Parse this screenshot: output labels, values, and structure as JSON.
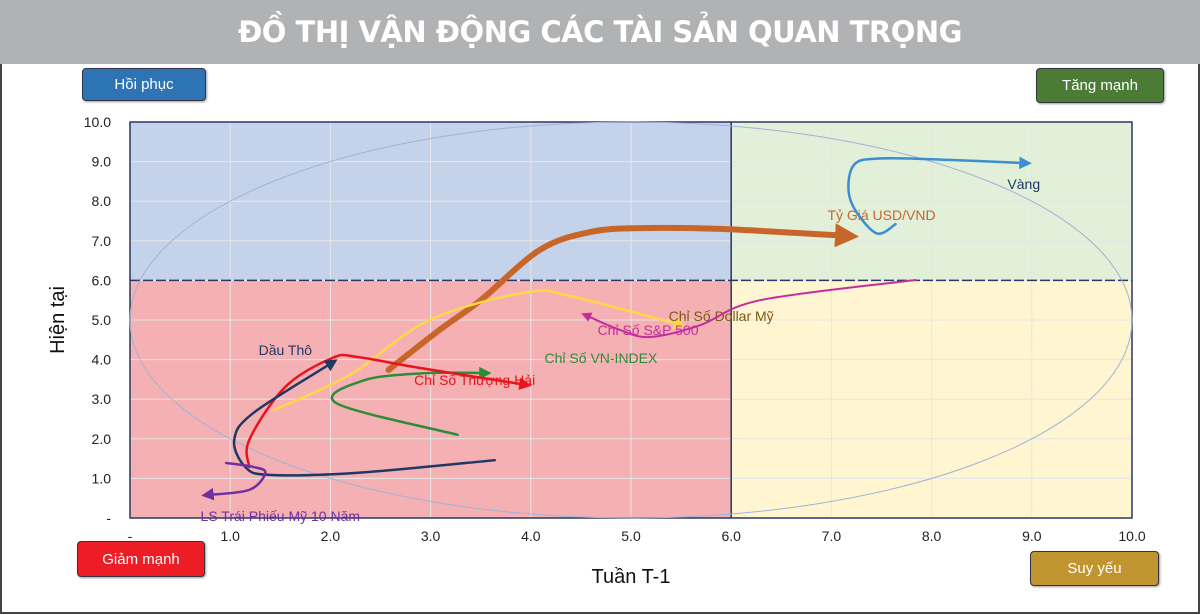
{
  "title": "ĐỒ THỊ VẬN ĐỘNG CÁC TÀI SẢN QUAN TRỌNG",
  "quadrants": {
    "top_left": {
      "label": "Hồi phục",
      "color": "#2e74b5",
      "fill": "#c5d3ea"
    },
    "top_right": {
      "label": "Tăng mạnh",
      "color": "#4a7c35",
      "fill": "#e2efd9"
    },
    "bottom_left": {
      "label": "Giảm mạnh",
      "color": "#ee1c25",
      "fill": "#f4b0b3"
    },
    "bottom_right": {
      "label": "Suy yếu",
      "color": "#c0942e",
      "fill": "#fff5d1"
    }
  },
  "chart_data": {
    "type": "line",
    "title": "ĐỒ THỊ VẬN ĐỘNG CÁC TÀI SẢN QUAN TRỌNG",
    "xlabel": "Tuần T-1",
    "ylabel": "Hiện tại",
    "xlim": [
      0,
      10
    ],
    "ylim": [
      0,
      10
    ],
    "xticks": [
      "-",
      "1.0",
      "2.0",
      "3.0",
      "4.0",
      "5.0",
      "6.0",
      "7.0",
      "8.0",
      "9.0",
      "10.0"
    ],
    "yticks": [
      "-",
      "1.0",
      "2.0",
      "3.0",
      "4.0",
      "5.0",
      "6.0",
      "7.0",
      "8.0",
      "9.0",
      "10.0"
    ],
    "grid": true,
    "quadrant_split": {
      "x": 6,
      "y": 6
    },
    "ellipse": {
      "cx": 5,
      "cy": 5,
      "rx": 5,
      "ry": 5
    },
    "series": [
      {
        "name": "Tỷ Giá USD/VND",
        "color": "#c8662a",
        "width": 6,
        "label_at": [
          7.5,
          7.65
        ],
        "points": [
          [
            2.58,
            3.74
          ],
          [
            3.09,
            4.75
          ],
          [
            3.5,
            5.5
          ],
          [
            4.09,
            6.77
          ],
          [
            4.59,
            7.22
          ],
          [
            5.09,
            7.32
          ],
          [
            5.89,
            7.3
          ],
          [
            7.18,
            7.12
          ]
        ]
      },
      {
        "name": "Vàng",
        "color": "#3b8fd0",
        "width": 2.5,
        "label_at": [
          8.92,
          8.43
        ],
        "label_color": "#1f3864",
        "points": [
          [
            7.64,
            7.42
          ],
          [
            7.44,
            7.2
          ],
          [
            7.19,
            8.03
          ],
          [
            7.22,
            8.9
          ],
          [
            7.5,
            9.08
          ],
          [
            8.2,
            9.04
          ],
          [
            8.95,
            8.96
          ]
        ]
      },
      {
        "name": "Chỉ Số Dollar Mỹ",
        "color": "#ffd84a",
        "width": 2.5,
        "label_at": [
          5.9,
          5.1
        ],
        "label_color": "#7b5a14",
        "points": [
          [
            1.44,
            2.73
          ],
          [
            2.19,
            3.61
          ],
          [
            2.99,
            5.0
          ],
          [
            3.96,
            5.7
          ],
          [
            4.4,
            5.6
          ],
          [
            5.5,
            4.87
          ]
        ]
      },
      {
        "name": "Chỉ Số S&P 500",
        "color": "#c42e9c",
        "width": 2,
        "label_at": [
          5.17,
          4.75
        ],
        "points": [
          [
            7.84,
            6.01
          ],
          [
            6.29,
            5.5
          ],
          [
            5.69,
            4.87
          ],
          [
            5.19,
            4.57
          ],
          [
            4.89,
            4.75
          ],
          [
            4.54,
            5.13
          ]
        ]
      },
      {
        "name": "Chỉ Số VN-INDEX",
        "color": "#2e8b3a",
        "width": 2.5,
        "label_at": [
          4.7,
          4.04
        ],
        "points": [
          [
            3.27,
            2.1
          ],
          [
            2.06,
            2.9
          ],
          [
            2.34,
            3.48
          ],
          [
            2.97,
            3.66
          ],
          [
            3.56,
            3.66
          ]
        ]
      },
      {
        "name": "Chỉ Số Thượng Hải",
        "color": "#e8141c",
        "width": 2.5,
        "label_at": [
          3.44,
          3.48
        ],
        "points": [
          [
            1.19,
            1.29
          ],
          [
            1.19,
            1.97
          ],
          [
            1.55,
            3.31
          ],
          [
            2.02,
            4.04
          ],
          [
            2.26,
            4.07
          ],
          [
            2.89,
            3.79
          ],
          [
            3.96,
            3.36
          ]
        ]
      },
      {
        "name": "Dầu Thô",
        "color": "#1f3864",
        "width": 2.5,
        "label_at": [
          1.55,
          4.24
        ],
        "points": [
          [
            3.64,
            1.46
          ],
          [
            2.26,
            1.14
          ],
          [
            1.39,
            1.09
          ],
          [
            1.15,
            1.29
          ],
          [
            1.04,
            1.97
          ],
          [
            1.23,
            2.65
          ],
          [
            2.03,
            3.94
          ]
        ]
      },
      {
        "name": "LS Trái Phiếu Mỹ 10 Năm",
        "color": "#7030a0",
        "width": 2.5,
        "label_at": [
          1.5,
          0.05
        ],
        "points": [
          [
            0.96,
            1.39
          ],
          [
            1.23,
            1.29
          ],
          [
            1.35,
            1.14
          ],
          [
            1.19,
            0.71
          ],
          [
            0.76,
            0.58
          ]
        ]
      }
    ]
  }
}
